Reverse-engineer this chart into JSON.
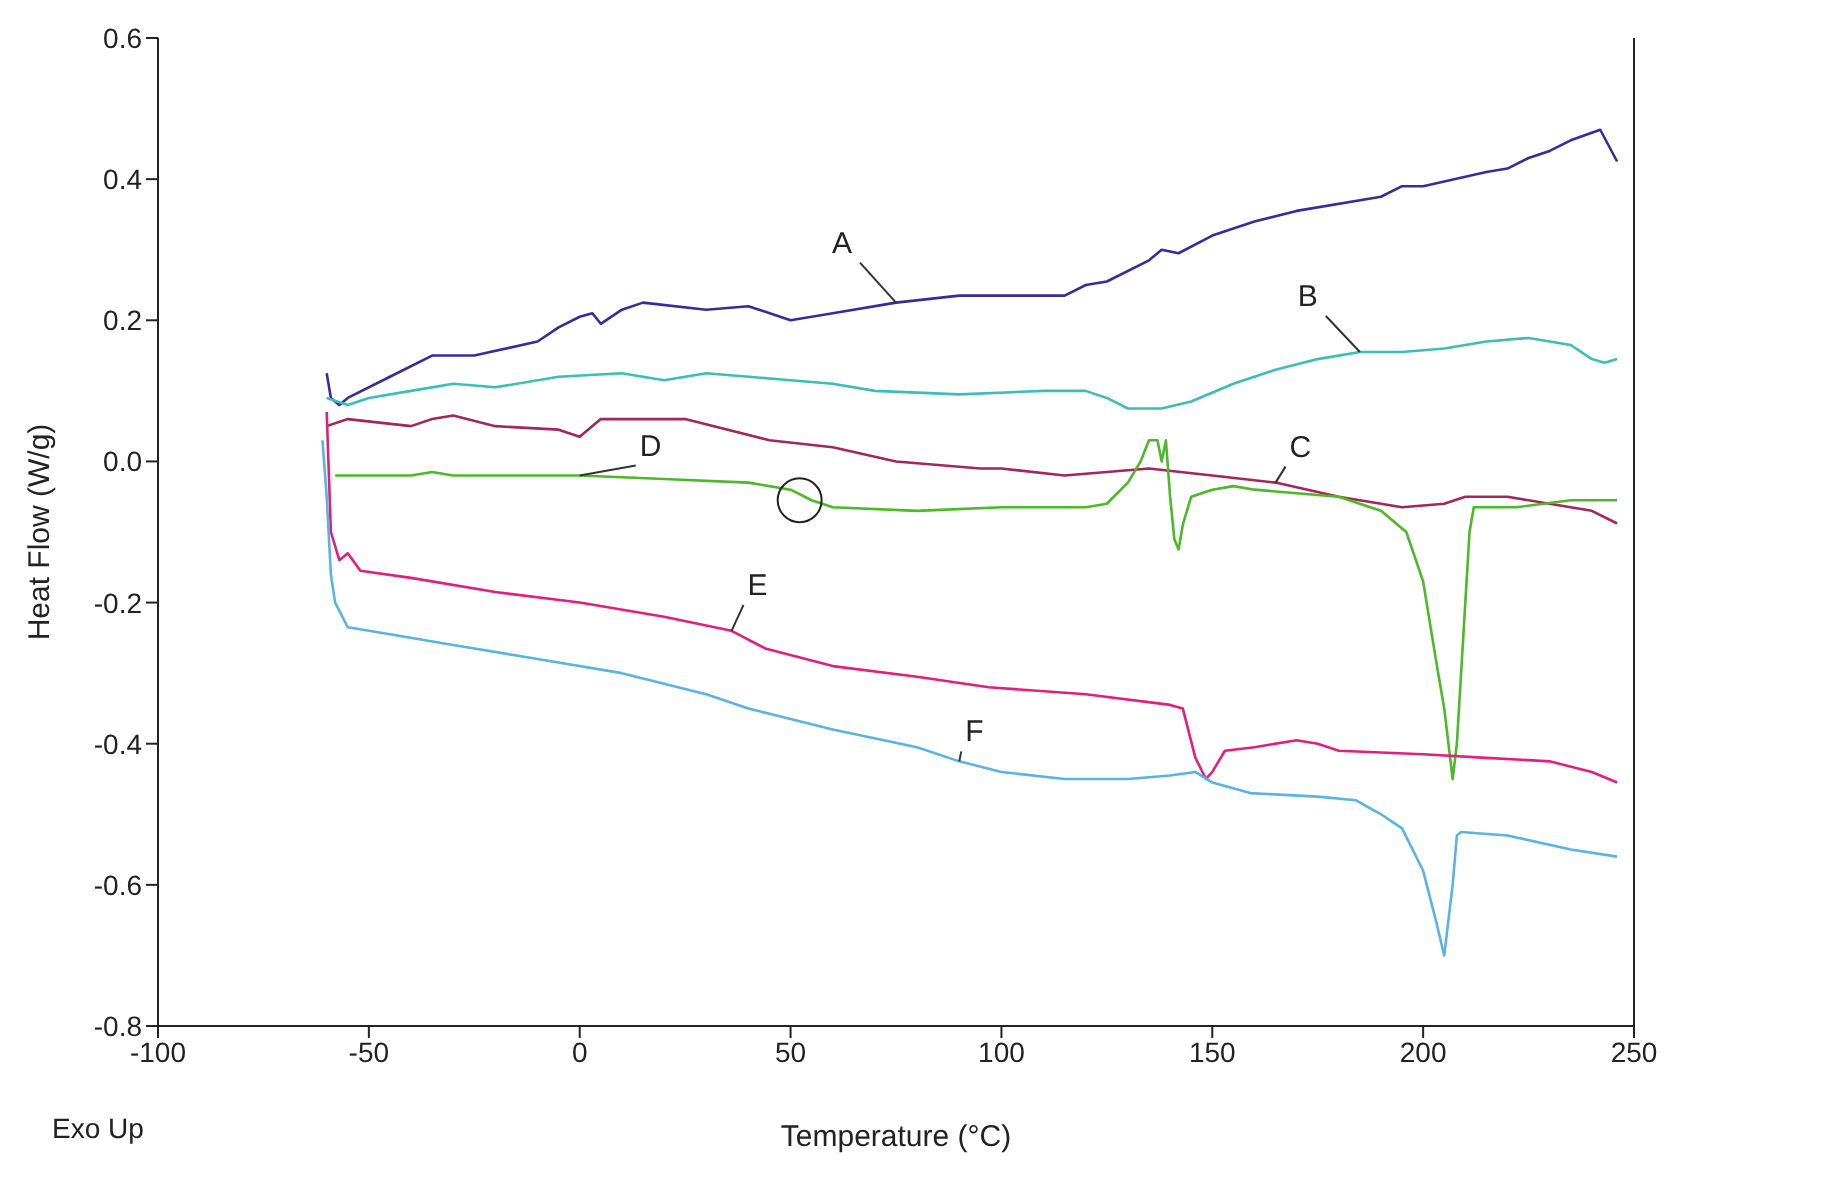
{
  "chart_data": {
    "type": "line",
    "xlabel": "Temperature (°C)",
    "ylabel": "Heat Flow (W/g)",
    "xlim": [
      -100,
      250
    ],
    "xticks": [
      -100,
      -50,
      0,
      50,
      100,
      150,
      200,
      250
    ],
    "ylim": [
      -0.8,
      0.6
    ],
    "yticks": [
      -0.8,
      -0.6,
      -0.4,
      -0.2,
      {
        "value": 0,
        "label": "0.0"
      },
      0.2,
      0.4,
      0.6
    ],
    "marker": "none",
    "line_style": "solid",
    "annotations": [
      "Exo Up"
    ],
    "series": [
      {
        "name": "A",
        "color": "#3b2b9a",
        "x": [
          -60,
          -59,
          -57,
          -55,
          -45,
          -35,
          -25,
          -10,
          -5,
          0,
          3,
          5,
          10,
          15,
          30,
          40,
          50,
          60,
          75,
          90,
          115,
          120,
          125,
          135,
          138,
          142,
          150,
          160,
          170,
          190,
          195,
          200,
          215,
          220,
          225,
          230,
          235,
          242,
          246
        ],
        "values": [
          0.125,
          0.09,
          0.08,
          0.09,
          0.12,
          0.15,
          0.15,
          0.17,
          0.19,
          0.205,
          0.21,
          0.195,
          0.215,
          0.225,
          0.215,
          0.22,
          0.2,
          0.21,
          0.225,
          0.235,
          0.235,
          0.25,
          0.255,
          0.285,
          0.3,
          0.295,
          0.32,
          0.34,
          0.355,
          0.375,
          0.39,
          0.39,
          0.41,
          0.415,
          0.43,
          0.44,
          0.455,
          0.47,
          0.425
        ]
      },
      {
        "name": "B",
        "color": "#3dbdb5",
        "x": [
          -60,
          -55,
          -50,
          -40,
          -30,
          -20,
          -5,
          10,
          20,
          30,
          40,
          50,
          60,
          70,
          90,
          110,
          120,
          125,
          130,
          138,
          145,
          155,
          165,
          175,
          185,
          195,
          205,
          215,
          225,
          235,
          240,
          243,
          246
        ],
        "values": [
          0.09,
          0.08,
          0.09,
          0.1,
          0.11,
          0.105,
          0.12,
          0.125,
          0.115,
          0.125,
          0.12,
          0.115,
          0.11,
          0.1,
          0.095,
          0.1,
          0.1,
          0.09,
          0.075,
          0.075,
          0.085,
          0.11,
          0.13,
          0.145,
          0.155,
          0.155,
          0.16,
          0.17,
          0.175,
          0.165,
          0.145,
          0.14,
          0.145
        ]
      },
      {
        "name": "C",
        "color": "#a0285a",
        "x": [
          -60,
          -55,
          -40,
          -35,
          -30,
          -20,
          -5,
          0,
          5,
          25,
          45,
          60,
          75,
          95,
          100,
          115,
          125,
          135,
          150,
          165,
          180,
          195,
          205,
          210,
          220,
          230,
          240,
          246
        ],
        "values": [
          0.05,
          0.06,
          0.05,
          0.06,
          0.065,
          0.05,
          0.045,
          0.035,
          0.06,
          0.06,
          0.03,
          0.02,
          0,
          -0.01,
          -0.01,
          -0.02,
          -0.015,
          -0.01,
          -0.02,
          -0.03,
          -0.05,
          -0.065,
          -0.06,
          -0.05,
          -0.05,
          -0.06,
          -0.07,
          -0.088
        ]
      },
      {
        "name": "D",
        "color": "#4cb82a",
        "x": [
          -58,
          -40,
          -35,
          -30,
          0,
          20,
          40,
          50,
          55,
          60,
          80,
          100,
          120,
          125,
          130,
          133,
          135,
          137,
          138,
          139,
          140,
          141,
          142,
          143,
          145,
          150,
          155,
          160,
          170,
          180,
          190,
          196,
          200,
          203,
          205,
          207,
          208,
          210,
          211,
          212,
          222,
          235,
          246
        ],
        "values": [
          -0.02,
          -0.02,
          -0.015,
          -0.02,
          -0.02,
          -0.025,
          -0.03,
          -0.04,
          -0.055,
          -0.065,
          -0.07,
          -0.065,
          -0.065,
          -0.06,
          -0.03,
          0,
          0.03,
          0.03,
          0,
          0.03,
          -0.05,
          -0.11,
          -0.125,
          -0.09,
          -0.05,
          -0.04,
          -0.035,
          -0.04,
          -0.045,
          -0.05,
          -0.07,
          -0.1,
          -0.17,
          -0.28,
          -0.35,
          -0.45,
          -0.4,
          -0.2,
          -0.1,
          -0.065,
          -0.065,
          -0.055,
          -0.055
        ]
      },
      {
        "name": "E",
        "color": "#e0207a",
        "x": [
          -60,
          -59,
          -57,
          -55,
          -52,
          -40,
          -20,
          0,
          20,
          36,
          44,
          60,
          80,
          97,
          120,
          140,
          143,
          146,
          148.5,
          150,
          153,
          160,
          170,
          175,
          180,
          200,
          215,
          230,
          240,
          246
        ],
        "values": [
          0.07,
          -0.1,
          -0.14,
          -0.13,
          -0.155,
          -0.165,
          -0.185,
          -0.2,
          -0.22,
          -0.24,
          -0.265,
          -0.29,
          -0.305,
          -0.32,
          -0.33,
          -0.345,
          -0.35,
          -0.42,
          -0.45,
          -0.44,
          -0.41,
          -0.405,
          -0.395,
          -0.4,
          -0.41,
          -0.415,
          -0.42,
          -0.425,
          -0.44,
          -0.455
        ]
      },
      {
        "name": "F",
        "color": "#5ab4e0",
        "x": [
          -61,
          -60,
          -59,
          -58,
          -55,
          -45,
          -30,
          -10,
          10,
          30,
          40,
          50,
          60,
          80,
          90,
          100,
          115,
          130,
          140,
          146,
          150,
          159,
          175,
          184,
          190,
          195,
          200,
          203,
          205,
          207,
          208,
          209,
          220,
          235,
          246
        ],
        "values": [
          0.03,
          -0.05,
          -0.16,
          -0.2,
          -0.235,
          -0.245,
          -0.26,
          -0.28,
          -0.3,
          -0.33,
          -0.35,
          -0.365,
          -0.38,
          -0.405,
          -0.425,
          -0.44,
          -0.45,
          -0.45,
          -0.445,
          -0.44,
          -0.455,
          -0.47,
          -0.475,
          -0.48,
          -0.5,
          -0.52,
          -0.58,
          -0.65,
          -0.7,
          -0.6,
          -0.53,
          -0.525,
          -0.53,
          -0.55,
          -0.56
        ]
      }
    ]
  }
}
